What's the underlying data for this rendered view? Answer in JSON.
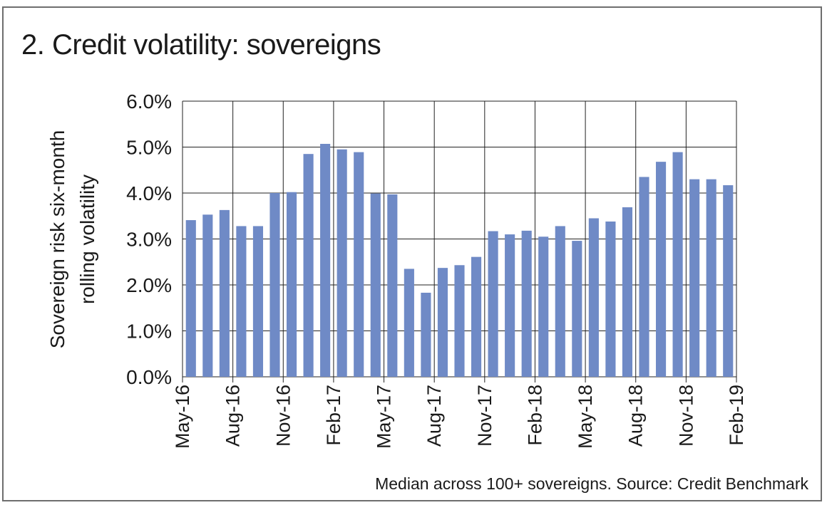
{
  "title": "2. Credit volatility: sovereigns",
  "footnote": "Median across 100+ sovereigns. Source: Credit Benchmark",
  "colors": {
    "bar": "#6f8ac6",
    "grid": "#222222",
    "frame": "#6e6e6e"
  },
  "chart_data": {
    "type": "bar",
    "title": "2. Credit volatility: sovereigns",
    "xlabel": "",
    "ylabel_lines": [
      "Sovereign risk six-month",
      "rolling volatility"
    ],
    "ylim": [
      0,
      0.06
    ],
    "y_ticks": [
      0,
      0.01,
      0.02,
      0.03,
      0.04,
      0.05,
      0.06
    ],
    "y_tick_labels": [
      "0.0%",
      "1.0%",
      "2.0%",
      "3.0%",
      "4.0%",
      "5.0%",
      "6.0%"
    ],
    "x_tick_labels": [
      "May-16",
      "Aug-16",
      "Nov-16",
      "Feb-17",
      "May-17",
      "Aug-17",
      "Nov-17",
      "Feb-18",
      "May-18",
      "Aug-18",
      "Nov-18",
      "Feb-19"
    ],
    "categories": [
      "May-16",
      "Jun-16",
      "Jul-16",
      "Aug-16",
      "Sep-16",
      "Oct-16",
      "Nov-16",
      "Dec-16",
      "Jan-17",
      "Feb-17",
      "Mar-17",
      "Apr-17",
      "May-17",
      "Jun-17",
      "Jul-17",
      "Aug-17",
      "Sep-17",
      "Oct-17",
      "Nov-17",
      "Dec-17",
      "Jan-18",
      "Feb-18",
      "Mar-18",
      "Apr-18",
      "May-18",
      "Jun-18",
      "Jul-18",
      "Aug-18",
      "Sep-18",
      "Oct-18",
      "Nov-18",
      "Dec-18",
      "Jan-19"
    ],
    "values": [
      0.0341,
      0.0353,
      0.0363,
      0.0328,
      0.0328,
      0.04,
      0.0402,
      0.0485,
      0.0507,
      0.0495,
      0.0489,
      0.0399,
      0.0397,
      0.0235,
      0.0183,
      0.0237,
      0.0243,
      0.0261,
      0.0317,
      0.031,
      0.0318,
      0.0305,
      0.0328,
      0.0296,
      0.0345,
      0.0338,
      0.0369,
      0.0435,
      0.0468,
      0.0489,
      0.043,
      0.043,
      0.0417
    ],
    "grid": true,
    "legend": "none"
  }
}
